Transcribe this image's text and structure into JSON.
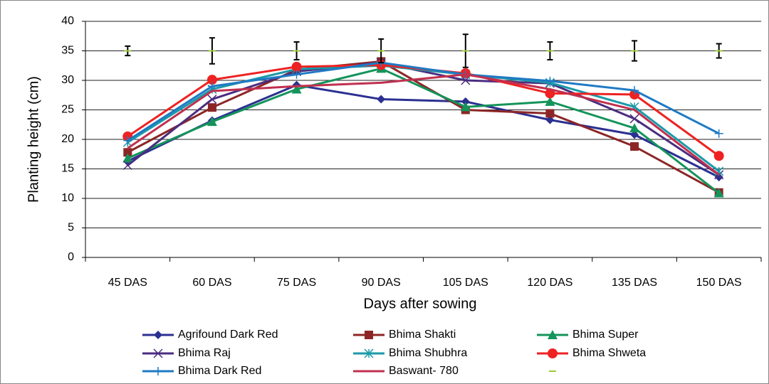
{
  "chart_data": {
    "type": "line",
    "x_label": "Days after sowing",
    "y_label": "Planting height (cm)",
    "categories": [
      "45 DAS",
      "60 DAS",
      "75 DAS",
      "90 DAS",
      "105 DAS",
      "120 DAS",
      "135 DAS",
      "150 DAS"
    ],
    "ylim": [
      0,
      40
    ],
    "yticks": [
      0,
      5,
      10,
      15,
      20,
      25,
      30,
      35,
      40
    ],
    "grid": true,
    "series": [
      {
        "name": "Agrifound Dark Red",
        "color": "#2b3090",
        "marker": "diamond",
        "values": [
          16.3,
          23.2,
          29.2,
          26.8,
          26.4,
          23.3,
          20.8,
          13.6
        ]
      },
      {
        "name": "Bhima Shakti",
        "color": "#8c2626",
        "marker": "square",
        "values": [
          17.8,
          25.4,
          31.8,
          33.2,
          25.0,
          24.4,
          18.8,
          11.0
        ]
      },
      {
        "name": "Bhima Super",
        "color": "#14945a",
        "marker": "triangle",
        "values": [
          16.8,
          23.0,
          28.5,
          32.0,
          25.5,
          26.4,
          21.9,
          10.9
        ]
      },
      {
        "name": "Bhima Raj",
        "color": "#4b2d80",
        "marker": "x",
        "values": [
          15.6,
          26.8,
          31.5,
          33.0,
          30.0,
          29.5,
          23.5,
          14.0
        ]
      },
      {
        "name": "Bhima Shubhra",
        "color": "#1a9aa8",
        "marker": "star",
        "values": [
          19.5,
          28.5,
          31.9,
          32.5,
          31.0,
          29.6,
          25.5,
          14.6
        ]
      },
      {
        "name": "Bhima Shweta",
        "color": "#ee2222",
        "marker": "circle",
        "values": [
          20.5,
          30.1,
          32.3,
          32.6,
          31.2,
          27.8,
          27.6,
          17.2
        ]
      },
      {
        "name": "Bhima Dark Red",
        "color": "#1f7ac4",
        "marker": "plus",
        "values": [
          19.8,
          29.0,
          31.0,
          33.0,
          31.0,
          29.9,
          28.3,
          21.0
        ]
      },
      {
        "name": "Baswant- 780",
        "color": "#c0304f",
        "marker": "none",
        "values": [
          18.5,
          28.2,
          29.0,
          29.6,
          31.0,
          28.5,
          25.0,
          14.0
        ]
      },
      {
        "name": null,
        "color": "#99cc33",
        "marker": "dash",
        "line": false,
        "values": [
          35,
          35,
          35,
          35,
          35,
          35,
          35,
          35
        ],
        "errors": [
          0.8,
          2.2,
          1.5,
          2.0,
          2.8,
          1.5,
          1.7,
          1.2
        ]
      }
    ]
  }
}
